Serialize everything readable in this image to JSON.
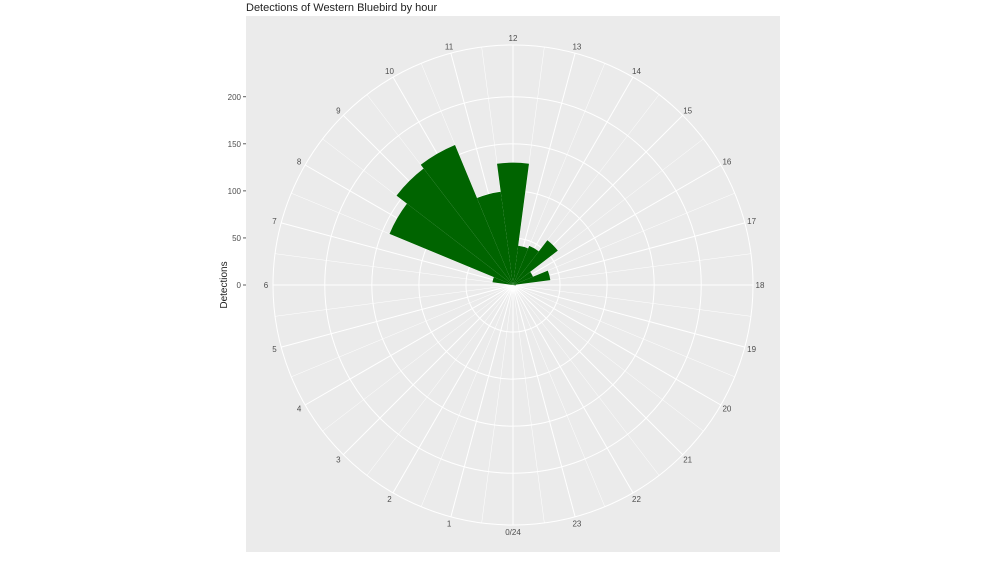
{
  "chart_data": {
    "type": "bar",
    "coord": "polar",
    "title": "Detections of Western Bluebird by hour",
    "xlabel": "",
    "ylabel": "Detections",
    "categories": [
      "0/24",
      "1",
      "2",
      "3",
      "4",
      "5",
      "6",
      "7",
      "8",
      "9",
      "10",
      "11",
      "12",
      "13",
      "14",
      "15",
      "16",
      "17",
      "18",
      "19",
      "20",
      "21",
      "22",
      "23"
    ],
    "hours": [
      0,
      1,
      2,
      3,
      4,
      5,
      6,
      7,
      8,
      9,
      10,
      11,
      12,
      13,
      14,
      15,
      16,
      17,
      18,
      19,
      20,
      21,
      22,
      23
    ],
    "values": [
      0,
      0,
      0,
      0,
      0,
      0,
      0,
      22,
      142,
      156,
      161,
      100,
      130,
      42,
      45,
      60,
      23,
      40,
      3,
      0,
      0,
      0,
      0,
      0
    ],
    "y_ticks": [
      0,
      50,
      100,
      150,
      200
    ],
    "y_tick_labels": [
      "0",
      "50",
      "100",
      "150",
      "200"
    ],
    "ylim": [
      0,
      255
    ],
    "bar_color": "#006400",
    "panel_color": "#ebebeb",
    "grid_color": "#ffffff",
    "grid": true
  }
}
